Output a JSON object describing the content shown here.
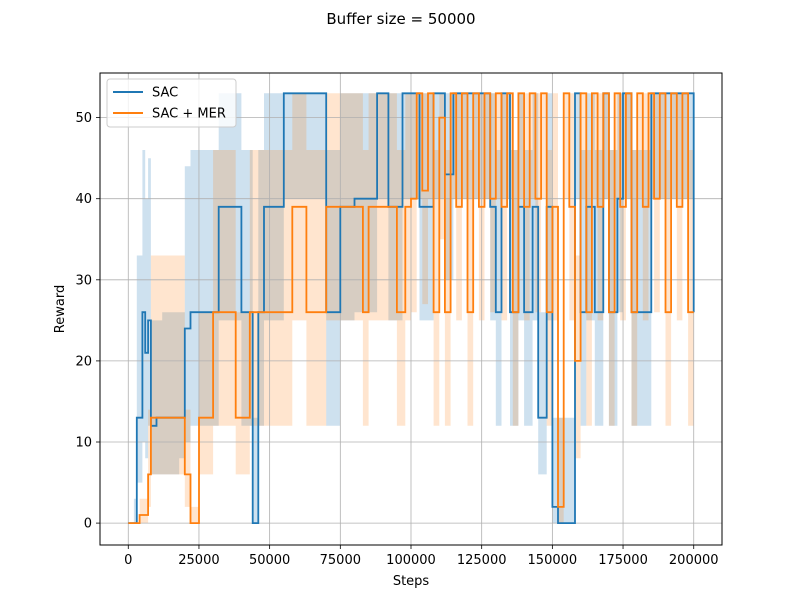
{
  "chart_data": {
    "type": "line",
    "title": "Buffer size = 50000",
    "xlabel": "Steps",
    "ylabel": "Reward",
    "xlim": [
      -10000,
      210000
    ],
    "ylim": [
      -2.7,
      55.5
    ],
    "xticks": [
      0,
      25000,
      50000,
      75000,
      100000,
      125000,
      150000,
      175000,
      200000
    ],
    "xtick_labels": [
      "0",
      "25000",
      "50000",
      "75000",
      "100000",
      "125000",
      "150000",
      "175000",
      "200000"
    ],
    "yticks": [
      0,
      10,
      20,
      30,
      40,
      50
    ],
    "ytick_labels": [
      "0",
      "10",
      "20",
      "30",
      "40",
      "50"
    ],
    "grid": true,
    "legend_position": "upper-left",
    "shaded_band": "min-max range across runs",
    "series": [
      {
        "name": "SAC",
        "color": "#1f77b4",
        "x": [
          0,
          2000,
          3000,
          4000,
          5000,
          6000,
          7000,
          8000,
          10000,
          12000,
          15000,
          18000,
          20000,
          22000,
          24000,
          25000,
          30000,
          32000,
          35000,
          38000,
          40000,
          42000,
          44000,
          45000,
          46000,
          48000,
          50000,
          52000,
          55000,
          60000,
          65000,
          68000,
          70000,
          72000,
          75000,
          80000,
          85000,
          88000,
          90000,
          92000,
          95000,
          97000,
          100000,
          103000,
          105000,
          108000,
          110000,
          112000,
          115000,
          118000,
          120000,
          122000,
          125000,
          128000,
          130000,
          132000,
          135000,
          138000,
          140000,
          143000,
          145000,
          148000,
          150000,
          152000,
          155000,
          158000,
          160000,
          162000,
          165000,
          168000,
          170000,
          173000,
          175000,
          178000,
          180000,
          185000,
          190000,
          195000,
          200000
        ],
        "y": [
          0,
          0,
          13,
          13,
          26,
          21,
          25,
          12,
          13,
          13,
          13,
          13,
          24,
          26,
          26,
          26,
          26,
          39,
          39,
          39,
          26,
          26,
          0,
          0,
          26,
          39,
          39,
          39,
          53,
          53,
          53,
          53,
          26,
          26,
          39,
          40,
          40,
          53,
          53,
          39,
          39,
          53,
          53,
          39,
          39,
          53,
          53,
          43,
          53,
          53,
          53,
          53,
          53,
          39,
          26,
          53,
          26,
          39,
          26,
          39,
          13,
          39,
          2,
          0,
          0,
          53,
          26,
          39,
          26,
          53,
          26,
          40,
          53,
          26,
          26,
          53,
          53,
          53,
          26
        ],
        "y_min": [
          0,
          0,
          5,
          5,
          10,
          8,
          12,
          6,
          6,
          6,
          6,
          8,
          10,
          12,
          12,
          12,
          12,
          25,
          25,
          25,
          12,
          12,
          0,
          0,
          12,
          25,
          25,
          25,
          40,
          40,
          40,
          40,
          12,
          12,
          25,
          26,
          26,
          40,
          40,
          25,
          25,
          40,
          40,
          25,
          25,
          40,
          40,
          30,
          40,
          40,
          40,
          40,
          40,
          25,
          12,
          40,
          12,
          25,
          12,
          25,
          6,
          25,
          0,
          0,
          0,
          40,
          12,
          25,
          12,
          40,
          12,
          26,
          40,
          12,
          12,
          40,
          40,
          40,
          12
        ],
        "y_max": [
          0,
          3,
          33,
          33,
          46,
          40,
          45,
          25,
          25,
          26,
          26,
          26,
          44,
          46,
          46,
          46,
          46,
          53,
          53,
          53,
          46,
          46,
          13,
          13,
          46,
          53,
          53,
          53,
          53,
          53,
          53,
          53,
          46,
          46,
          53,
          53,
          53,
          53,
          53,
          53,
          53,
          53,
          53,
          53,
          53,
          53,
          53,
          53,
          53,
          53,
          53,
          53,
          53,
          53,
          46,
          53,
          46,
          53,
          46,
          53,
          26,
          53,
          13,
          13,
          13,
          53,
          46,
          53,
          46,
          53,
          46,
          53,
          53,
          46,
          46,
          53,
          53,
          53,
          46
        ]
      },
      {
        "name": "SAC + MER",
        "color": "#ff7f0e",
        "x": [
          0,
          2000,
          4000,
          6000,
          7000,
          8000,
          10000,
          12000,
          15000,
          18000,
          20000,
          22000,
          24000,
          25000,
          28000,
          30000,
          33000,
          35000,
          38000,
          40000,
          43000,
          45000,
          48000,
          50000,
          52000,
          55000,
          58000,
          60000,
          63000,
          65000,
          68000,
          70000,
          73000,
          75000,
          78000,
          80000,
          83000,
          85000,
          88000,
          90000,
          93000,
          95000,
          98000,
          100000,
          102000,
          104000,
          106000,
          108000,
          110000,
          112000,
          114000,
          116000,
          118000,
          120000,
          122000,
          124000,
          126000,
          128000,
          130000,
          132000,
          134000,
          136000,
          138000,
          140000,
          142000,
          144000,
          146000,
          148000,
          150000,
          152000,
          154000,
          156000,
          158000,
          160000,
          162000,
          164000,
          166000,
          168000,
          170000,
          172000,
          174000,
          176000,
          178000,
          180000,
          182000,
          184000,
          186000,
          188000,
          190000,
          192000,
          194000,
          196000,
          198000,
          200000
        ],
        "y": [
          0,
          0,
          1,
          1,
          6,
          13,
          13,
          13,
          13,
          13,
          6,
          0,
          0,
          13,
          13,
          26,
          26,
          26,
          13,
          13,
          26,
          26,
          26,
          26,
          26,
          26,
          39,
          39,
          26,
          26,
          26,
          39,
          39,
          39,
          39,
          39,
          26,
          39,
          39,
          39,
          39,
          26,
          39,
          40,
          53,
          41,
          53,
          26,
          50,
          26,
          53,
          39,
          53,
          26,
          53,
          39,
          53,
          40,
          53,
          39,
          53,
          26,
          53,
          39,
          53,
          40,
          53,
          26,
          39,
          2,
          53,
          39,
          20,
          53,
          26,
          53,
          39,
          53,
          26,
          53,
          39,
          53,
          26,
          53,
          39,
          53,
          40,
          53,
          26,
          53,
          39,
          53,
          26,
          26
        ],
        "y_min": [
          0,
          0,
          0,
          0,
          2,
          6,
          6,
          6,
          6,
          6,
          2,
          0,
          0,
          6,
          6,
          12,
          12,
          12,
          6,
          6,
          12,
          12,
          12,
          12,
          12,
          12,
          25,
          25,
          12,
          12,
          12,
          25,
          25,
          25,
          25,
          25,
          12,
          25,
          25,
          25,
          25,
          12,
          25,
          26,
          40,
          27,
          40,
          12,
          35,
          12,
          40,
          25,
          40,
          12,
          40,
          25,
          40,
          26,
          40,
          25,
          40,
          12,
          40,
          25,
          40,
          26,
          40,
          12,
          25,
          0,
          40,
          25,
          8,
          40,
          12,
          40,
          25,
          40,
          12,
          40,
          25,
          40,
          12,
          40,
          25,
          40,
          26,
          40,
          12,
          40,
          25,
          40,
          12,
          12
        ],
        "y_max": [
          0,
          0,
          3,
          3,
          14,
          33,
          33,
          33,
          33,
          33,
          14,
          2,
          2,
          26,
          26,
          46,
          46,
          46,
          26,
          26,
          46,
          46,
          46,
          46,
          46,
          46,
          53,
          53,
          46,
          46,
          46,
          53,
          53,
          53,
          53,
          53,
          46,
          53,
          53,
          53,
          53,
          46,
          53,
          53,
          53,
          53,
          53,
          46,
          53,
          46,
          53,
          53,
          53,
          46,
          53,
          53,
          53,
          53,
          53,
          53,
          53,
          46,
          53,
          53,
          53,
          53,
          53,
          46,
          53,
          13,
          53,
          53,
          33,
          53,
          46,
          53,
          53,
          53,
          46,
          53,
          53,
          53,
          46,
          53,
          53,
          53,
          53,
          53,
          46,
          53,
          53,
          53,
          46,
          46
        ]
      }
    ]
  }
}
